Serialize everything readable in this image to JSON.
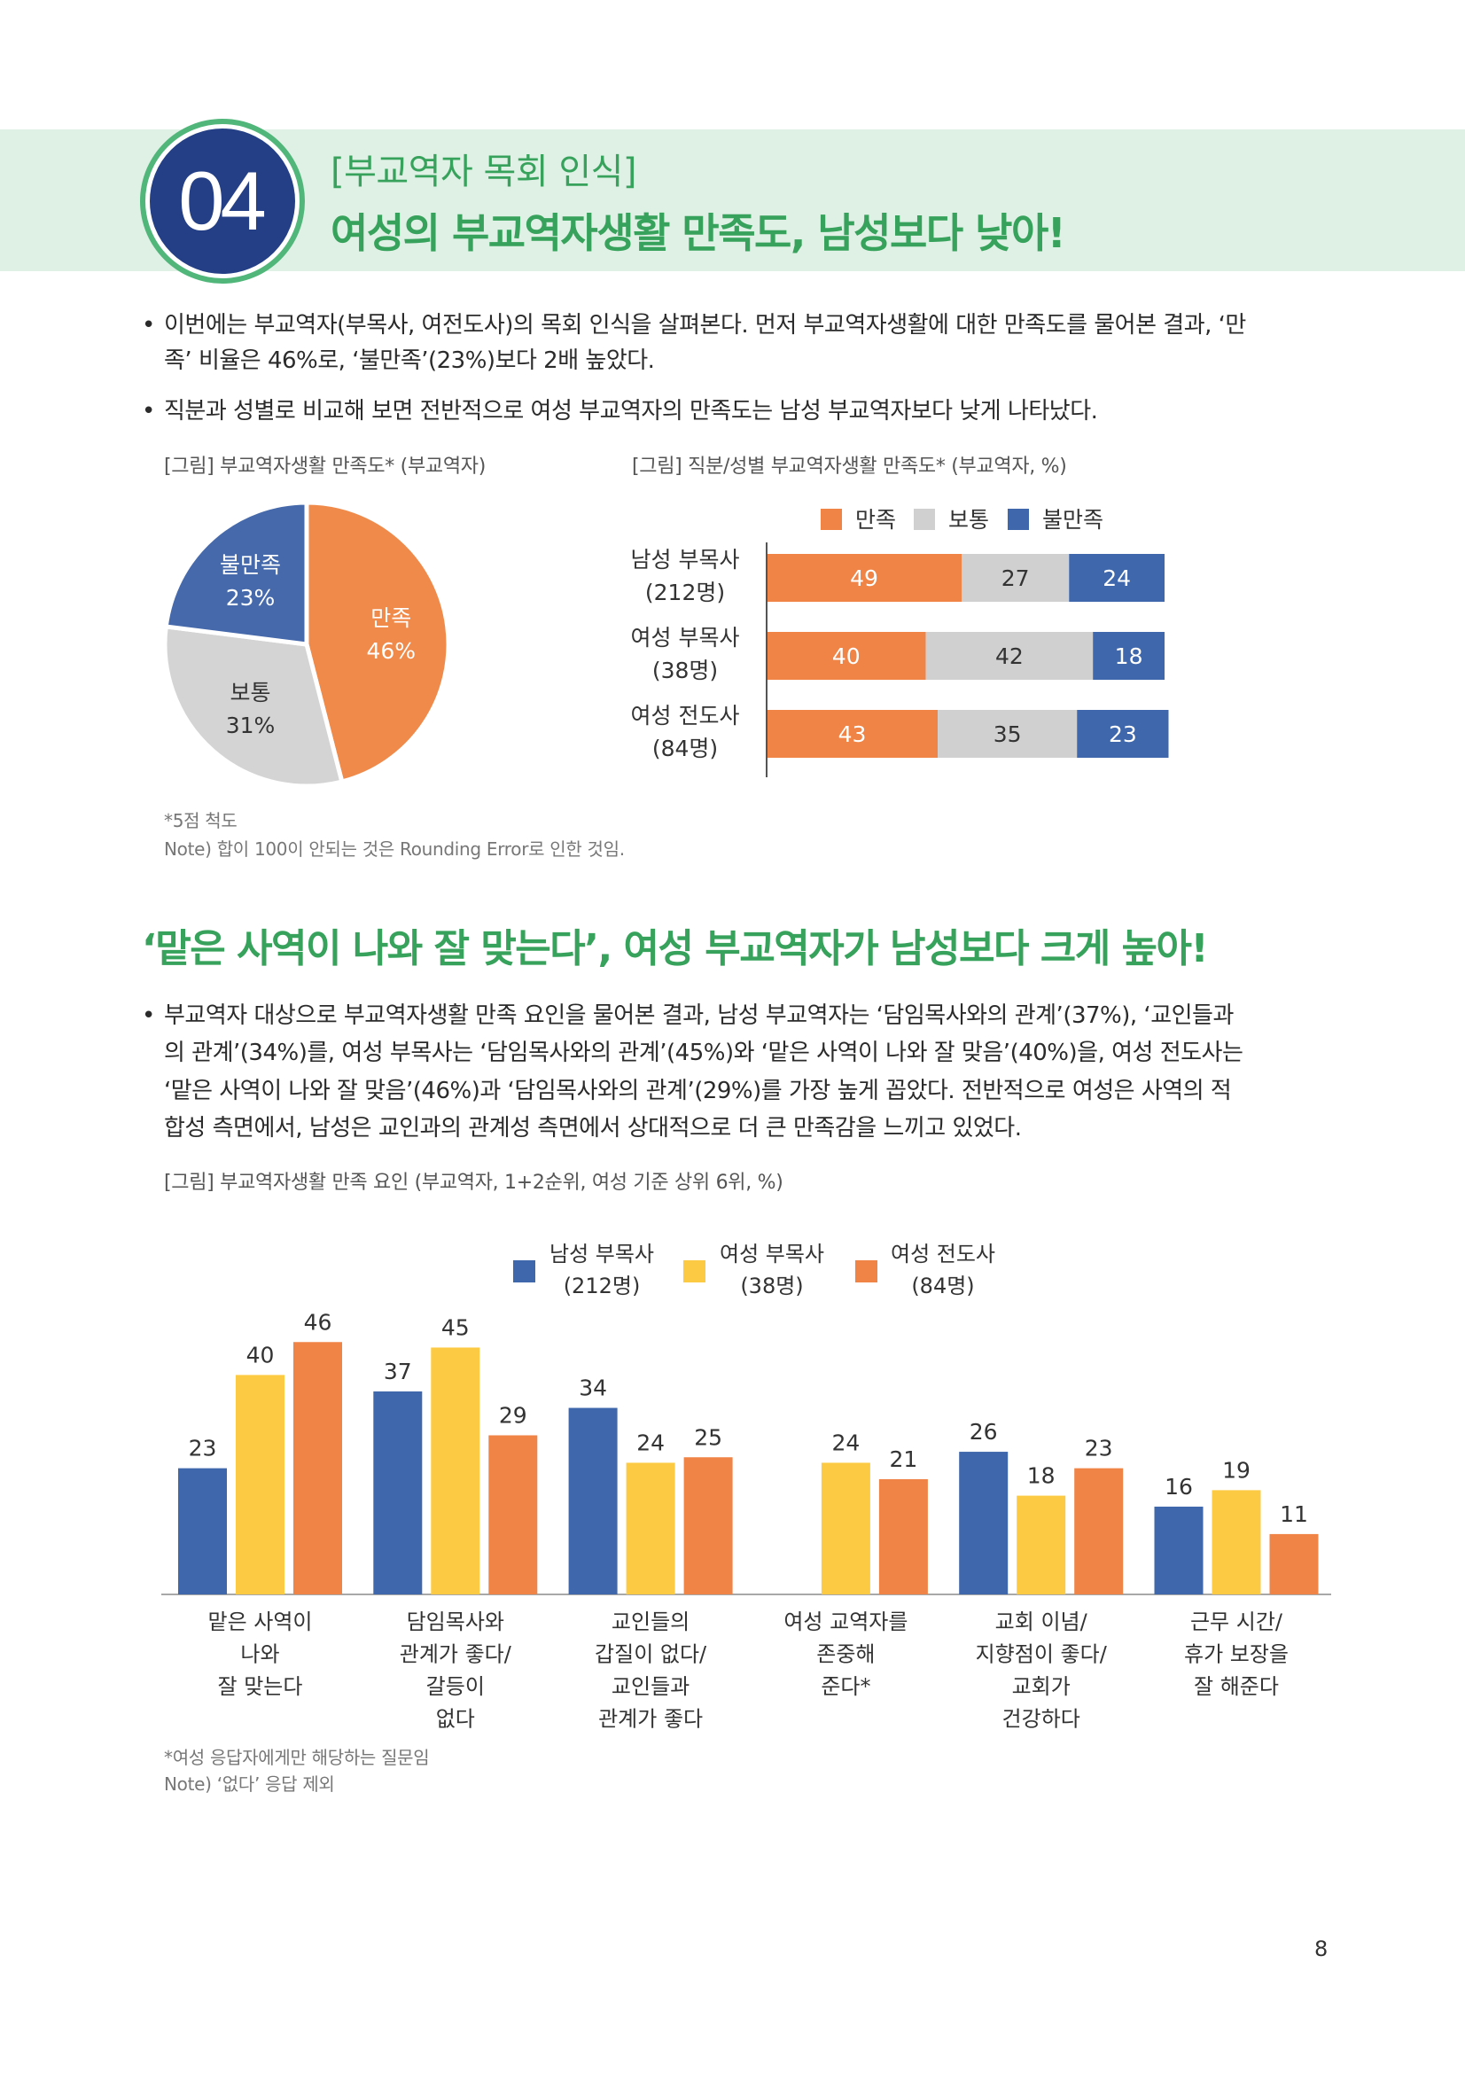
{
  "theme": {
    "accent_green": "#37a25b",
    "badge_navy": "#243f85",
    "badge_ring": "#50b679",
    "header_band": "#dff0e5"
  },
  "header": {
    "number": "04",
    "subtitle": "[부교역자 목회 인식]",
    "title": "여성의 부교역자생활 만족도, 남성보다 낮아!"
  },
  "section1": {
    "bullets": [
      {
        "lines": [
          "이번에는 부교역자(부목사, 여전도사)의 목회 인식을 살펴본다. 먼저 부교역자생활에 대한 만족도를 물어본 결과, ‘만",
          "족’ 비율은 46%로, ‘불만족’(23%)보다 2배 높았다."
        ]
      },
      {
        "lines": [
          "직분과 성별로 비교해 보면 전반적으로 여성 부교역자의 만족도는 남성 부교역자보다 낮게 나타났다."
        ]
      }
    ]
  },
  "section2": {
    "heading": "‘맡은 사역이 나와 잘 맞는다’, 여성 부교역자가 남성보다 크게 높아!",
    "bullet": {
      "lines": [
        "부교역자 대상으로 부교역자생활 만족 요인을 물어본 결과, 남성 부교역자는 ‘담임목사와의 관계’(37%), ‘교인들과",
        "의 관계’(34%)를, 여성 부목사는 ‘담임목사와의 관계’(45%)와 ‘맡은 사역이 나와 잘 맞음’(40%)을, 여성 전도사는",
        "‘맡은 사역이 나와 잘 맞음’(46%)과 ‘담임목사와의 관계’(29%)를 가장 높게 꼽았다. 전반적으로 여성은 사역의 적",
        "합성 측면에서, 남성은 교인과의 관계성 측면에서 상대적으로 더 큰 만족감을 느끼고 있었다."
      ]
    }
  },
  "page_number": "8",
  "chart_data": [
    {
      "type": "pie",
      "title": "[그림] 부교역자생활 만족도* (부교역자)",
      "slices": [
        {
          "label": "만족",
          "value": 46,
          "display": "46%",
          "color": "#f08a4b",
          "label_color": "#ffffff"
        },
        {
          "label": "보통",
          "value": 31,
          "display": "31%",
          "color": "#d4d4d4",
          "label_color": "#333333"
        },
        {
          "label": "불만족",
          "value": 23,
          "display": "23%",
          "color": "#4569ab",
          "label_color": "#ffffff"
        }
      ],
      "notes": [
        "*5점 척도",
        "Note) 합이 100이 안되는 것은 Rounding Error로 인한 것임."
      ]
    },
    {
      "type": "bar",
      "orientation": "horizontal",
      "stacked": true,
      "title": "[그림] 직분/성별 부교역자생활 만족도* (부교역자, %)",
      "legend": "top",
      "categories": [
        [
          "남성 부목사",
          "(212명)"
        ],
        [
          "여성 부목사",
          "(38명)"
        ],
        [
          "여성 전도사",
          "(84명)"
        ]
      ],
      "series": [
        {
          "name": "만족",
          "color": "#ef8446",
          "label_color": "#ffffff",
          "values": [
            49,
            40,
            43
          ]
        },
        {
          "name": "보통",
          "color": "#d0d0d0",
          "label_color": "#333333",
          "values": [
            27,
            42,
            35
          ]
        },
        {
          "name": "불만족",
          "color": "#3f67ab",
          "label_color": "#ffffff",
          "values": [
            24,
            18,
            23
          ]
        }
      ]
    },
    {
      "type": "bar",
      "title": "[그림] 부교역자생활 만족 요인 (부교역자, 1+2순위, 여성 기준 상위 6위, %)",
      "legend": "top",
      "categories": [
        [
          "맡은 사역이",
          "나와",
          "잘 맞는다"
        ],
        [
          "담임목사와",
          "관계가 좋다/",
          "갈등이",
          "없다"
        ],
        [
          "교인들의",
          "갑질이 없다/",
          "교인들과",
          "관계가 좋다"
        ],
        [
          "여성 교역자를",
          "존중해",
          "준다*"
        ],
        [
          "교회 이념/",
          "지향점이 좋다/",
          "교회가",
          "건강하다"
        ],
        [
          "근무 시간/",
          "휴가 보장을",
          "잘 해준다"
        ]
      ],
      "series": [
        {
          "name": "남성 부목사",
          "count": "(212명)",
          "color": "#3f67ab",
          "values": [
            23,
            37,
            34,
            null,
            26,
            16
          ]
        },
        {
          "name": "여성 부목사",
          "count": "(38명)",
          "color": "#fccb43",
          "values": [
            40,
            45,
            24,
            24,
            18,
            19
          ]
        },
        {
          "name": "여성 전도사",
          "count": "(84명)",
          "color": "#f08447",
          "values": [
            46,
            29,
            25,
            21,
            23,
            11
          ]
        }
      ],
      "notes": [
        "*여성 응답자에게만 해당하는 질문임",
        "Note) ‘없다’ 응답 제외"
      ]
    }
  ]
}
